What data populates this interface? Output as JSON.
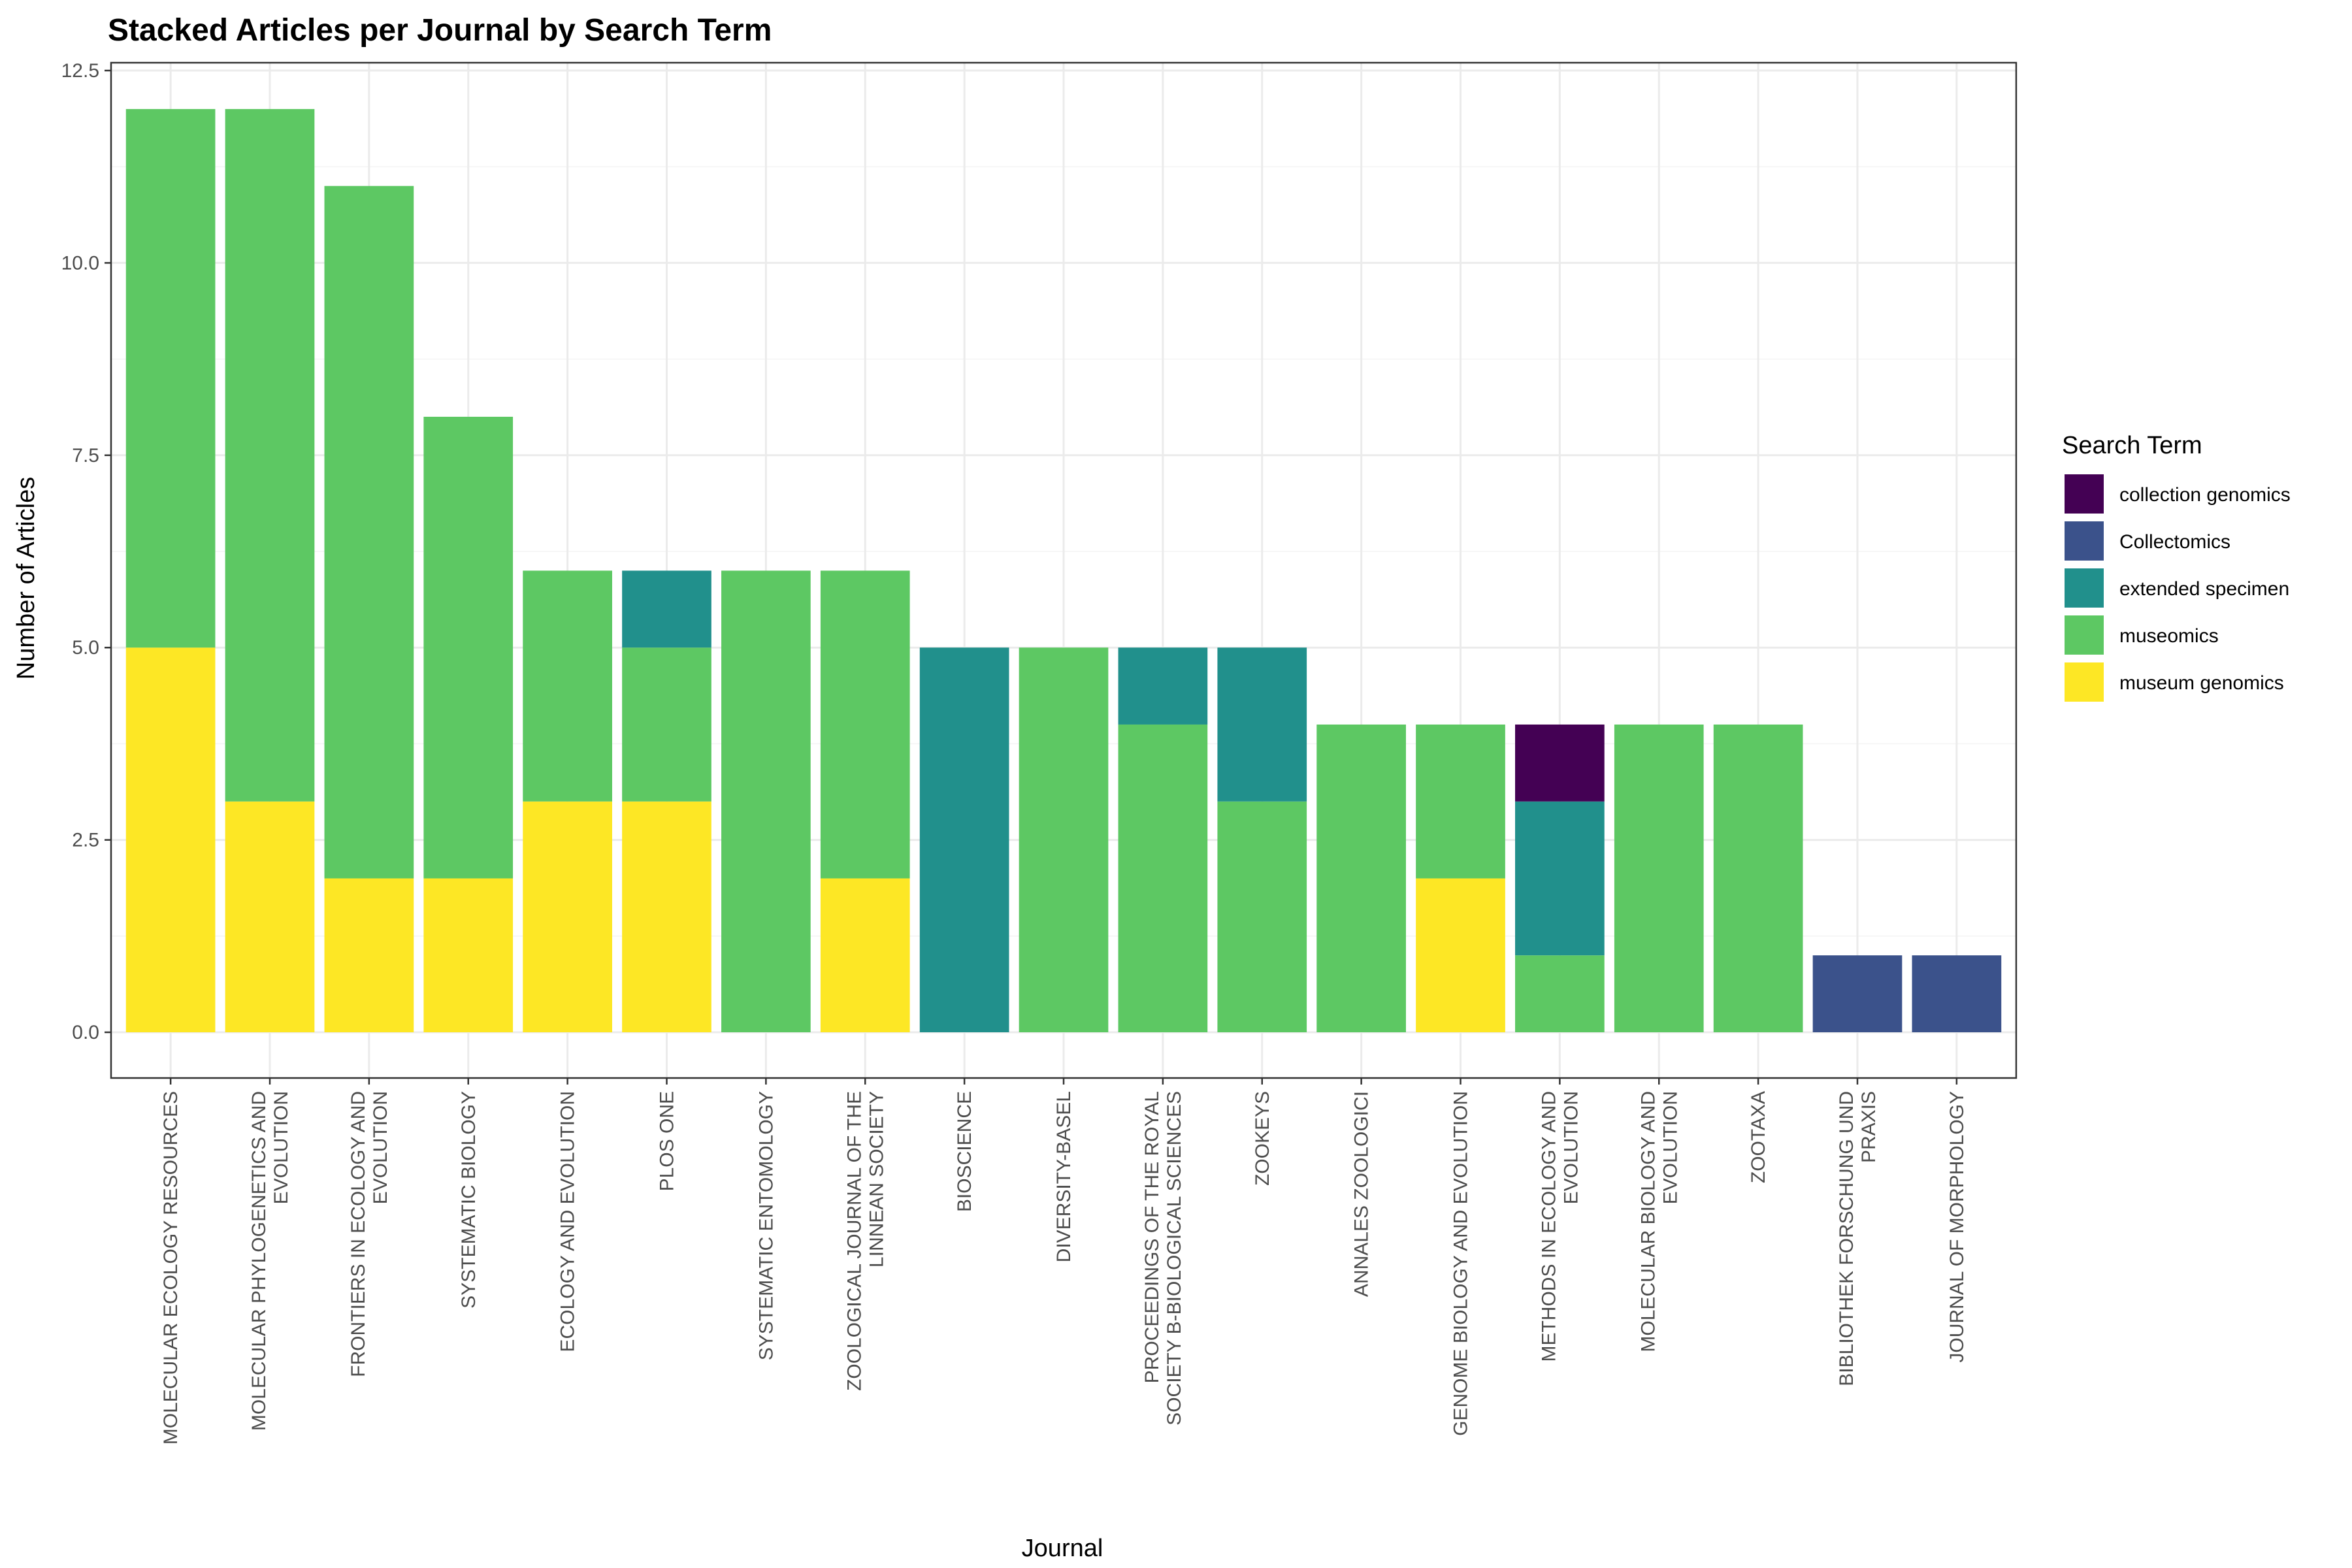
{
  "chart_data": {
    "type": "bar",
    "stacked": true,
    "title": "Stacked Articles per Journal by Search Term",
    "xlabel": "Journal",
    "ylabel": "Number of Articles",
    "ylim": [
      0,
      12.5
    ],
    "yticks": [
      "0.0",
      "2.5",
      "5.0",
      "7.5",
      "10.0",
      "12.5"
    ],
    "grid": true,
    "legend_position": "right",
    "legend_title": "Search Term",
    "categories": [
      [
        "MOLECULAR ECOLOGY RESOURCES"
      ],
      [
        "MOLECULAR PHYLOGENETICS AND",
        "EVOLUTION"
      ],
      [
        "FRONTIERS IN ECOLOGY AND",
        "EVOLUTION"
      ],
      [
        "SYSTEMATIC BIOLOGY"
      ],
      [
        "ECOLOGY AND EVOLUTION"
      ],
      [
        "PLOS ONE"
      ],
      [
        "SYSTEMATIC ENTOMOLOGY"
      ],
      [
        "ZOOLOGICAL JOURNAL OF THE",
        "LINNEAN SOCIETY"
      ],
      [
        "BIOSCIENCE"
      ],
      [
        "DIVERSITY-BASEL"
      ],
      [
        "PROCEEDINGS OF THE ROYAL",
        "SOCIETY B-BIOLOGICAL SCIENCES"
      ],
      [
        "ZOOKEYS"
      ],
      [
        "ANNALES ZOOLOGICI"
      ],
      [
        "GENOME BIOLOGY AND EVOLUTION"
      ],
      [
        "METHODS IN ECOLOGY AND",
        "EVOLUTION"
      ],
      [
        "MOLECULAR BIOLOGY AND",
        "EVOLUTION"
      ],
      [
        "ZOOTAXA"
      ],
      [
        "BIBLIOTHEK FORSCHUNG UND",
        "PRAXIS"
      ],
      [
        "JOURNAL OF MORPHOLOGY"
      ]
    ],
    "series": [
      {
        "name": "collection genomics",
        "color": "#440154",
        "values": [
          0,
          0,
          0,
          0,
          0,
          0,
          0,
          0,
          0,
          0,
          0,
          0,
          0,
          0,
          1,
          0,
          0,
          0,
          0
        ]
      },
      {
        "name": "Collectomics",
        "color": "#3b528b",
        "values": [
          0,
          0,
          0,
          0,
          0,
          0,
          0,
          0,
          0,
          0,
          0,
          0,
          0,
          0,
          0,
          0,
          0,
          1,
          1
        ]
      },
      {
        "name": "extended specimen",
        "color": "#21908c",
        "values": [
          0,
          0,
          0,
          0,
          0,
          1,
          0,
          0,
          5,
          0,
          1,
          2,
          0,
          0,
          2,
          0,
          0,
          0,
          0
        ]
      },
      {
        "name": "museomics",
        "color": "#5dc863",
        "values": [
          7,
          9,
          9,
          6,
          3,
          2,
          6,
          4,
          0,
          5,
          4,
          3,
          4,
          2,
          1,
          4,
          4,
          0,
          0
        ]
      },
      {
        "name": "museum genomics",
        "color": "#fde725",
        "values": [
          5,
          3,
          2,
          2,
          3,
          3,
          0,
          2,
          0,
          0,
          0,
          0,
          0,
          2,
          0,
          0,
          0,
          0,
          0
        ]
      }
    ]
  }
}
